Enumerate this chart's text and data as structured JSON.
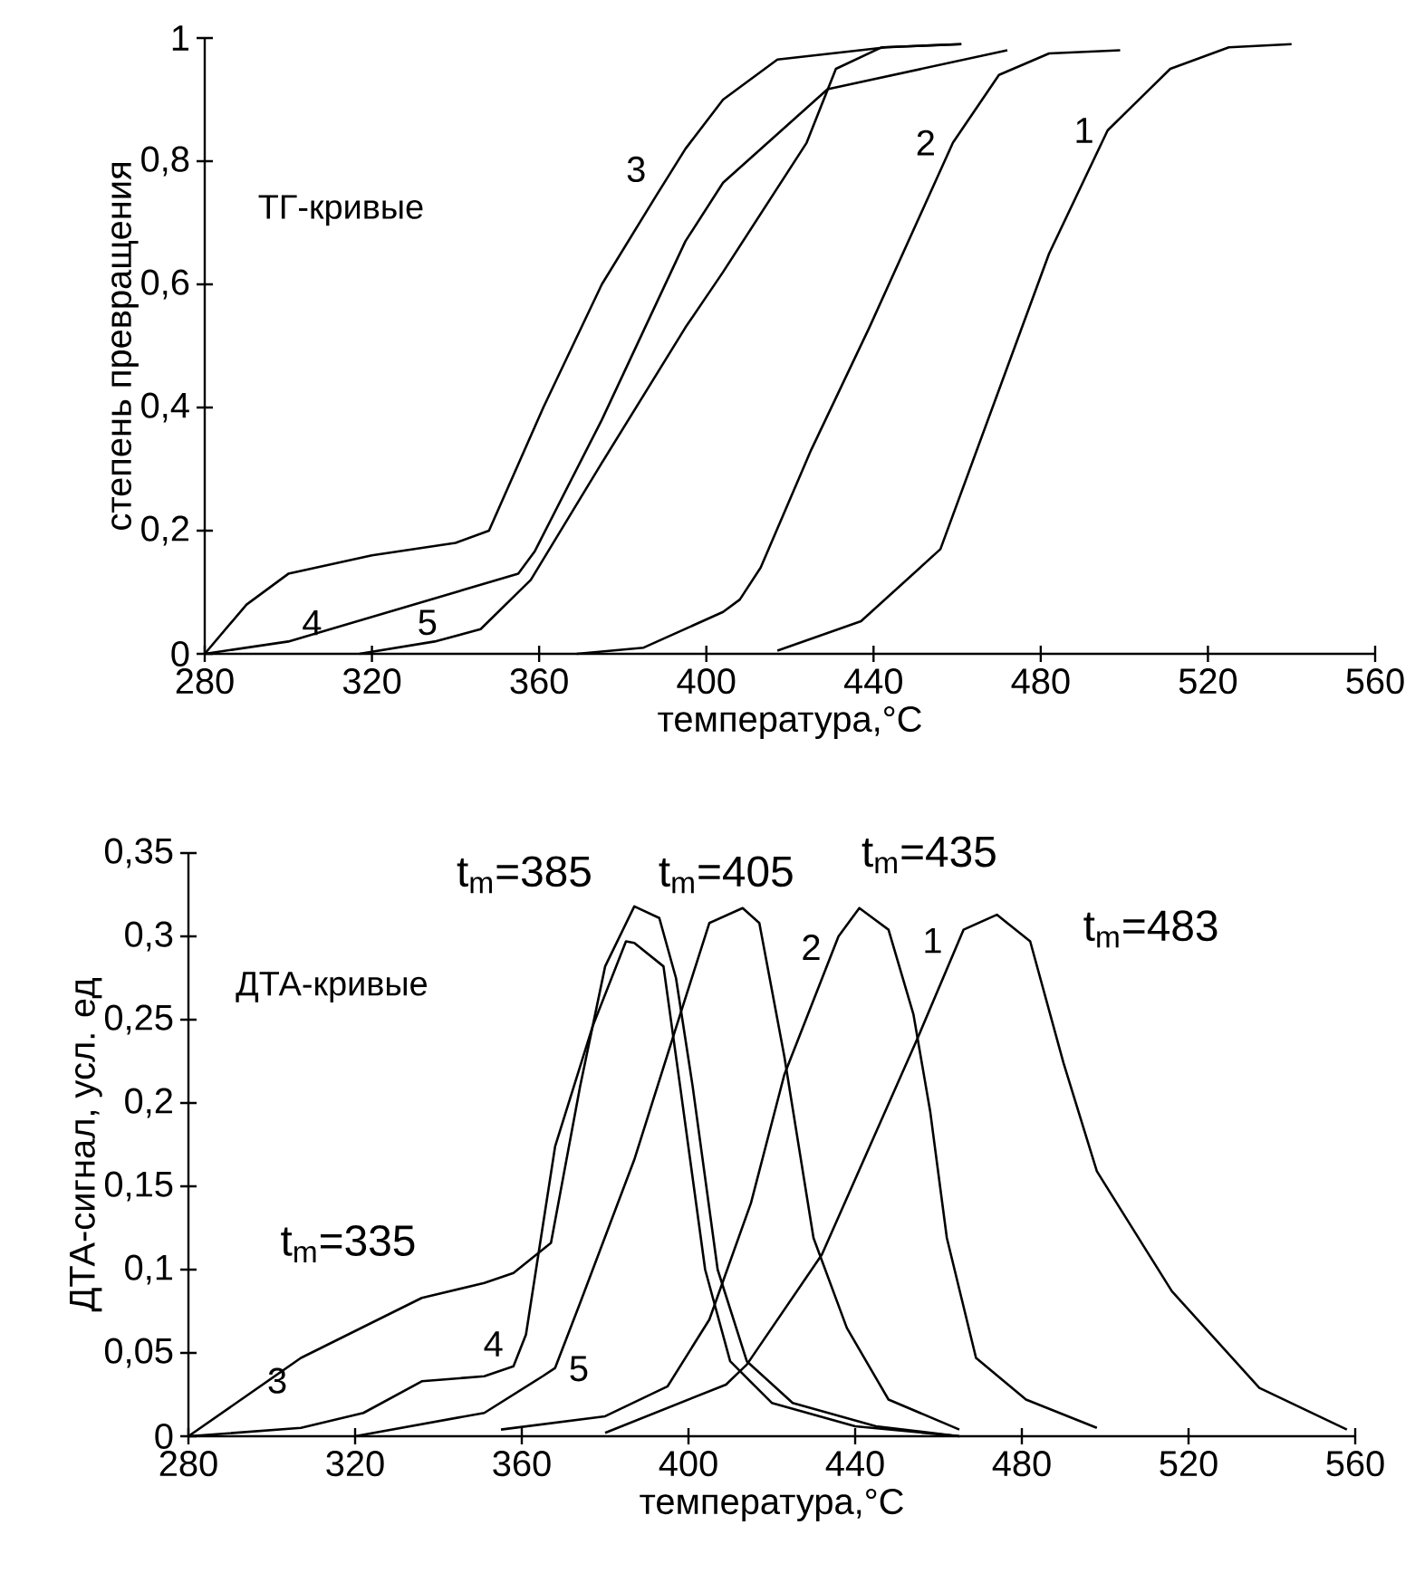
{
  "chart_data": [
    {
      "type": "line",
      "title": "ТГ-кривые",
      "xlabel": "температура,°C",
      "ylabel": "степень превращения",
      "xlim": [
        280,
        560
      ],
      "ylim": [
        0,
        1
      ],
      "xticks": [
        280,
        320,
        360,
        400,
        440,
        480,
        520,
        560
      ],
      "yticks": [
        0,
        {
          "value": 0.2,
          "label": "0,2"
        },
        {
          "value": 0.4,
          "label": "0,4"
        },
        {
          "value": 0.6,
          "label": "0,6"
        },
        {
          "value": 0.8,
          "label": "0,8"
        },
        1
      ],
      "series": [
        {
          "name": "1",
          "color": "#000000",
          "x": [
            417,
            437,
            456,
            482,
            496,
            511,
            525,
            540
          ],
          "values": [
            0.005,
            0.053,
            0.17,
            0.65,
            0.85,
            0.95,
            0.985,
            0.99
          ]
        },
        {
          "name": "2",
          "color": "#000000",
          "x": [
            369,
            385,
            404,
            408,
            413,
            425,
            439,
            459,
            470,
            482,
            499
          ],
          "values": [
            0,
            0.01,
            0.068,
            0.088,
            0.14,
            0.33,
            0.53,
            0.83,
            0.94,
            0.975,
            0.98
          ]
        },
        {
          "name": "3",
          "color": "#000000",
          "x": [
            280,
            290,
            300,
            320,
            340,
            348,
            361,
            375,
            388,
            395,
            404,
            417,
            443,
            461
          ],
          "values": [
            0,
            0.08,
            0.13,
            0.16,
            0.18,
            0.2,
            0.4,
            0.6,
            0.744,
            0.82,
            0.9,
            0.965,
            0.985,
            0.99
          ]
        },
        {
          "name": "4",
          "color": "#000000",
          "x": [
            280,
            300,
            320,
            340,
            355,
            359,
            375,
            395,
            404,
            429,
            472
          ],
          "values": [
            0,
            0.02,
            0.06,
            0.1,
            0.13,
            0.167,
            0.38,
            0.67,
            0.765,
            0.917,
            0.98
          ]
        },
        {
          "name": "5",
          "color": "#000000",
          "x": [
            317,
            335,
            346,
            358,
            375,
            395,
            404,
            424,
            431,
            442,
            461
          ],
          "values": [
            0,
            0.02,
            0.04,
            0.12,
            0.31,
            0.53,
            0.62,
            0.83,
            0.95,
            0.985,
            0.99
          ]
        }
      ]
    },
    {
      "type": "line",
      "title": "ДТА-кривые",
      "xlabel": "температура,°C",
      "ylabel": "ДТА-сигнал, усл. ед",
      "xlim": [
        280,
        560
      ],
      "ylim": [
        0,
        0.35
      ],
      "xticks": [
        280,
        320,
        360,
        400,
        440,
        480,
        520,
        560
      ],
      "yticks": [
        0,
        {
          "value": 0.05,
          "label": "0,05"
        },
        {
          "value": 0.1,
          "label": "0,1"
        },
        {
          "value": 0.15,
          "label": "0,15"
        },
        {
          "value": 0.2,
          "label": "0,2"
        },
        {
          "value": 0.25,
          "label": "0,25"
        },
        {
          "value": 0.3,
          "label": "0,3"
        },
        {
          "value": 0.35,
          "label": "0,35"
        }
      ],
      "series": [
        {
          "name": "1",
          "color": "#000000",
          "x": [
            380,
            409,
            414,
            432,
            455,
            466,
            474,
            482,
            490,
            498,
            516,
            537,
            558
          ],
          "values": [
            0.002,
            0.031,
            0.043,
            0.109,
            0.239,
            0.304,
            0.313,
            0.297,
            0.224,
            0.159,
            0.087,
            0.029,
            0.004
          ]
        },
        {
          "name": "2",
          "color": "#000000",
          "x": [
            355,
            380,
            395,
            405,
            415,
            423,
            436,
            441,
            448,
            454,
            458,
            462,
            469,
            481,
            498
          ],
          "values": [
            0.004,
            0.012,
            0.03,
            0.07,
            0.14,
            0.217,
            0.3,
            0.317,
            0.304,
            0.253,
            0.195,
            0.119,
            0.047,
            0.022,
            0.005
          ]
        },
        {
          "name": "3",
          "color": "#000000",
          "x": [
            280,
            307,
            336,
            351,
            358,
            367,
            374,
            380,
            387,
            393,
            397,
            401,
            407,
            414,
            425,
            445,
            465
          ],
          "values": [
            0,
            0.047,
            0.083,
            0.092,
            0.098,
            0.116,
            0.21,
            0.282,
            0.318,
            0.311,
            0.275,
            0.21,
            0.1,
            0.045,
            0.02,
            0.006,
            0
          ]
        },
        {
          "name": "4",
          "color": "#000000",
          "x": [
            280,
            307,
            322,
            336,
            351,
            358,
            361,
            368,
            377,
            385,
            387,
            394,
            398,
            404,
            410,
            420,
            440,
            465
          ],
          "values": [
            0,
            0.005,
            0.014,
            0.033,
            0.036,
            0.042,
            0.061,
            0.174,
            0.246,
            0.297,
            0.296,
            0.282,
            0.21,
            0.1,
            0.045,
            0.02,
            0.006,
            0
          ]
        },
        {
          "name": "5",
          "color": "#000000",
          "x": [
            320,
            351,
            365,
            368,
            374,
            387,
            398,
            405,
            413,
            417,
            423,
            430,
            438,
            448,
            465
          ],
          "values": [
            0,
            0.014,
            0.036,
            0.041,
            0.08,
            0.166,
            0.253,
            0.308,
            0.317,
            0.308,
            0.228,
            0.119,
            0.065,
            0.022,
            0.004
          ]
        }
      ],
      "annotations": [
        "t$_{m}$=335",
        "t$_{m}$=385",
        "t$_{m}$=405",
        "t$_{m}$=435",
        "t$_{m}$=483"
      ]
    }
  ]
}
